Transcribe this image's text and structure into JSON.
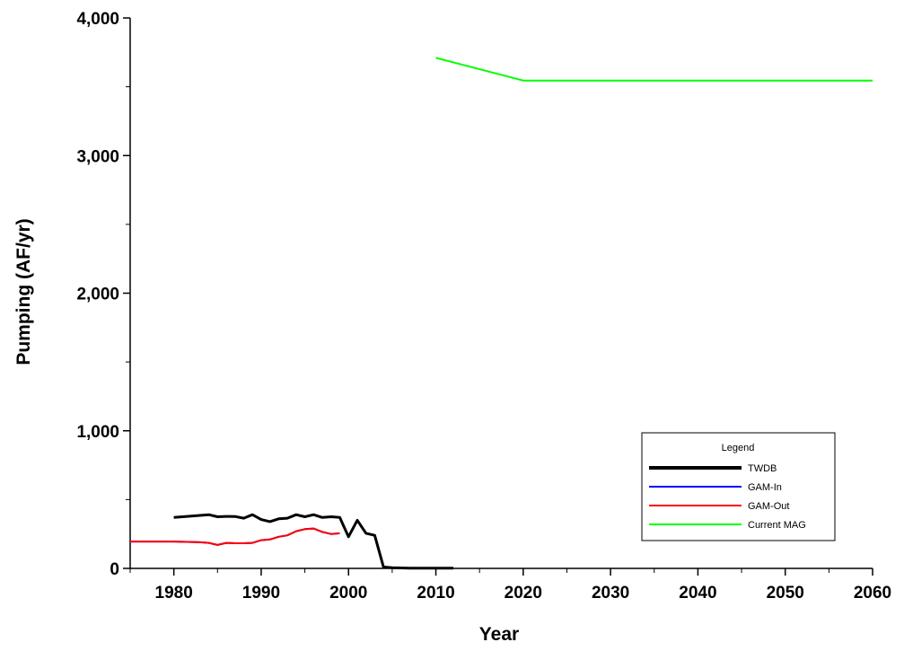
{
  "chart_data": {
    "type": "line",
    "title": "",
    "xlabel": "Year",
    "ylabel": "Pumping (AF/yr)",
    "xlim": [
      1975,
      2060
    ],
    "ylim": [
      0,
      4000
    ],
    "x_ticks": [
      1980,
      1990,
      2000,
      2010,
      2020,
      2030,
      2040,
      2050,
      2060
    ],
    "y_ticks": [
      0,
      1000,
      2000,
      3000,
      4000
    ],
    "y_tick_labels": [
      "0",
      "1,000",
      "2,000",
      "3,000",
      "4,000"
    ],
    "grid": false,
    "legend": {
      "title": "Legend",
      "position": "bottom-right"
    },
    "series": [
      {
        "name": "TWDB",
        "color": "#000000",
        "x": [
          1980,
          1981,
          1982,
          1983,
          1984,
          1985,
          1986,
          1987,
          1988,
          1989,
          1990,
          1991,
          1992,
          1993,
          1994,
          1995,
          1996,
          1997,
          1998,
          1999,
          2000,
          2001,
          2002,
          2003,
          2004,
          2005,
          2006,
          2007,
          2008,
          2009,
          2010,
          2011,
          2012
        ],
        "values": [
          370,
          375,
          380,
          385,
          390,
          375,
          378,
          377,
          365,
          390,
          355,
          340,
          360,
          365,
          390,
          375,
          390,
          370,
          375,
          370,
          230,
          350,
          255,
          240,
          10,
          5,
          3,
          2,
          2,
          2,
          2,
          2,
          2
        ]
      },
      {
        "name": "GAM-In",
        "color": "#0000ff",
        "x": [
          1975,
          1980,
          1981,
          1982,
          1983,
          1984,
          1985,
          1986,
          1987,
          1988,
          1989,
          1990,
          1991,
          1992,
          1993,
          1994,
          1995,
          1996,
          1997,
          1998,
          1999
        ],
        "values": [
          195,
          195,
          193,
          192,
          190,
          185,
          170,
          185,
          183,
          183,
          185,
          205,
          210,
          230,
          240,
          270,
          285,
          290,
          265,
          250,
          255
        ]
      },
      {
        "name": "GAM-Out",
        "color": "#ff0000",
        "x": [
          1975,
          1980,
          1981,
          1982,
          1983,
          1984,
          1985,
          1986,
          1987,
          1988,
          1989,
          1990,
          1991,
          1992,
          1993,
          1994,
          1995,
          1996,
          1997,
          1998,
          1999
        ],
        "values": [
          195,
          195,
          193,
          192,
          190,
          185,
          170,
          185,
          183,
          183,
          185,
          205,
          210,
          230,
          240,
          270,
          285,
          290,
          265,
          250,
          255
        ]
      },
      {
        "name": "Current MAG",
        "color": "#00ff00",
        "x": [
          2010,
          2020,
          2030,
          2040,
          2050,
          2060
        ],
        "values": [
          3710,
          3545,
          3545,
          3545,
          3545,
          3545
        ]
      }
    ]
  }
}
